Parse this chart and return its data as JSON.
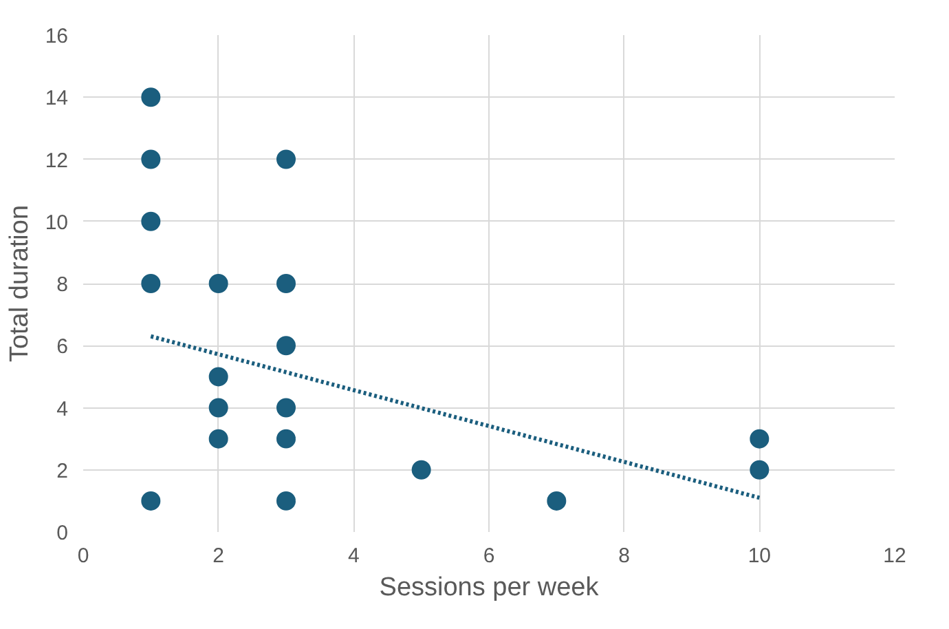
{
  "chart_data": {
    "type": "scatter",
    "xlabel": "Sessions per week",
    "ylabel": "Total duration",
    "xlim": [
      0,
      12
    ],
    "ylim": [
      0,
      16
    ],
    "xticks": [
      0,
      2,
      4,
      6,
      8,
      10,
      12
    ],
    "yticks": [
      0,
      2,
      4,
      6,
      8,
      10,
      12,
      14,
      16
    ],
    "grid": true,
    "series": [
      {
        "color": "#1b5e7e",
        "marker": "circle",
        "x": [
          1,
          1,
          1,
          1,
          1,
          2,
          2,
          2,
          2,
          3,
          3,
          3,
          3,
          3,
          3,
          5,
          7,
          10,
          10
        ],
        "values": [
          14,
          12,
          10,
          8,
          1,
          8,
          5,
          4,
          3,
          12,
          8,
          6,
          4,
          3,
          1,
          2,
          1,
          3,
          2
        ]
      },
      {
        "type": "line",
        "color": "#1b5e7e",
        "line_style": "dotted",
        "x": [
          1,
          10
        ],
        "values": [
          6.3,
          1.1
        ]
      }
    ]
  }
}
